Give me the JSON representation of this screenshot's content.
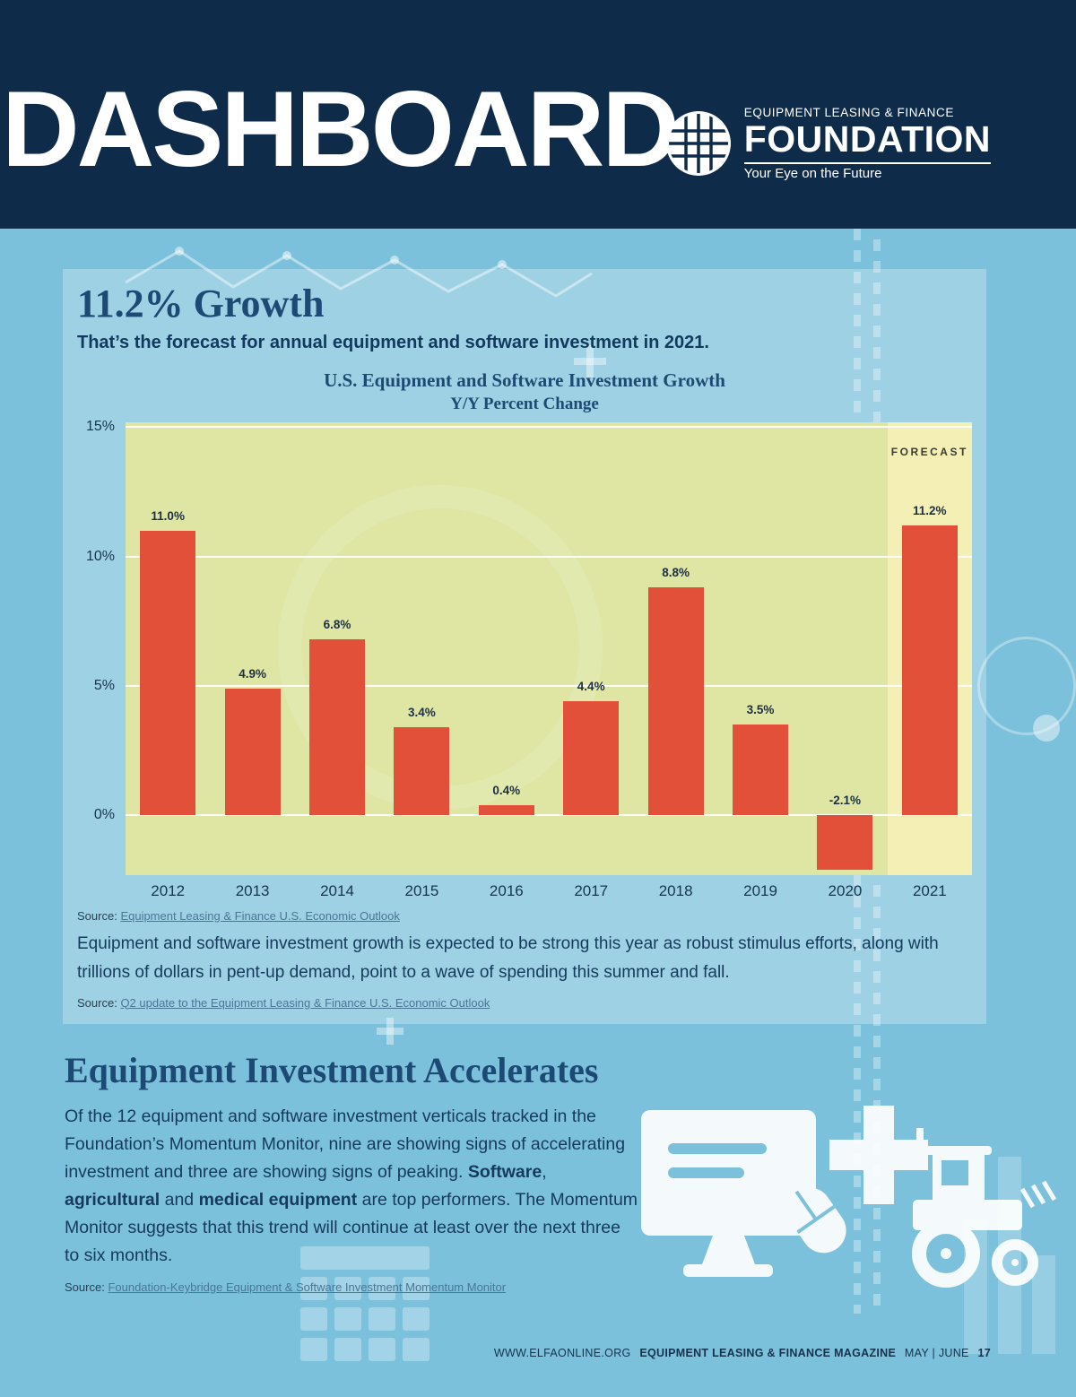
{
  "header": {
    "title": "DASHBOARD",
    "logo": {
      "line1": "EQUIPMENT LEASING & FINANCE",
      "line2": "FOUNDATION",
      "tagline": "Your Eye on the Future"
    }
  },
  "panel": {
    "headline": "11.2% Growth",
    "subhead": "That’s the forecast for annual equipment and software investment in 2021.",
    "source1_label": "Source:",
    "source1_link": "Equipment Leasing & Finance U.S. Economic Outlook",
    "body": "Equipment and software investment growth is expected to be strong this year as robust stimulus efforts, along with trillions of dollars in pent-up demand, point to a wave of spending this summer and fall.",
    "source2_label": "Source:",
    "source2_link": "Q2 update to the Equipment Leasing & Finance U.S. Economic Outlook"
  },
  "chart_data": {
    "type": "bar",
    "title": "U.S. Equipment and Software Investment Growth",
    "subtitle": "Y/Y Percent Change",
    "categories": [
      "2012",
      "2013",
      "2014",
      "2015",
      "2016",
      "2017",
      "2018",
      "2019",
      "2020",
      "2021"
    ],
    "values": [
      11.0,
      4.9,
      6.8,
      3.4,
      0.4,
      4.4,
      8.8,
      3.5,
      -2.1,
      11.2
    ],
    "labels": [
      "11.0%",
      "4.9%",
      "6.8%",
      "3.4%",
      "0.4%",
      "4.4%",
      "8.8%",
      "3.5%",
      "-2.1%",
      "11.2%"
    ],
    "ylim": [
      -2.3,
      15.2
    ],
    "yticks": [
      0,
      5,
      10,
      15
    ],
    "ytick_labels": [
      "0%",
      "5%",
      "10%",
      "15%"
    ],
    "grid": true,
    "forecast_label": "FORECAST",
    "forecast_index": 9,
    "bar_color": "#e2503a",
    "plot_bg": "#dfe6a4",
    "forecast_bg": "#f4efb5"
  },
  "section2": {
    "heading": "Equipment Investment Accelerates",
    "paragraph_segments": [
      {
        "text": "Of the 12 equipment and software investment verticals tracked in the Foundation’s Momentum Monitor, nine are showing signs of accelerating investment and three are showing signs of peaking. ",
        "bold": false
      },
      {
        "text": "Software",
        "bold": true
      },
      {
        "text": ", ",
        "bold": false
      },
      {
        "text": "agricultural",
        "bold": true
      },
      {
        "text": " and ",
        "bold": false
      },
      {
        "text": "medical equipment",
        "bold": true
      },
      {
        "text": " are top performers. The Momentum Monitor suggests that this trend will continue at least over the next three to six months.",
        "bold": false
      }
    ],
    "source_label": "Source:",
    "source_link": "Foundation-Keybridge Equipment & Software Investment Momentum Monitor"
  },
  "footer": {
    "url": "WWW.ELFAONLINE.ORG",
    "magazine": "EQUIPMENT LEASING & FINANCE MAGAZINE",
    "issue": "MAY | JUNE",
    "page": "17"
  }
}
